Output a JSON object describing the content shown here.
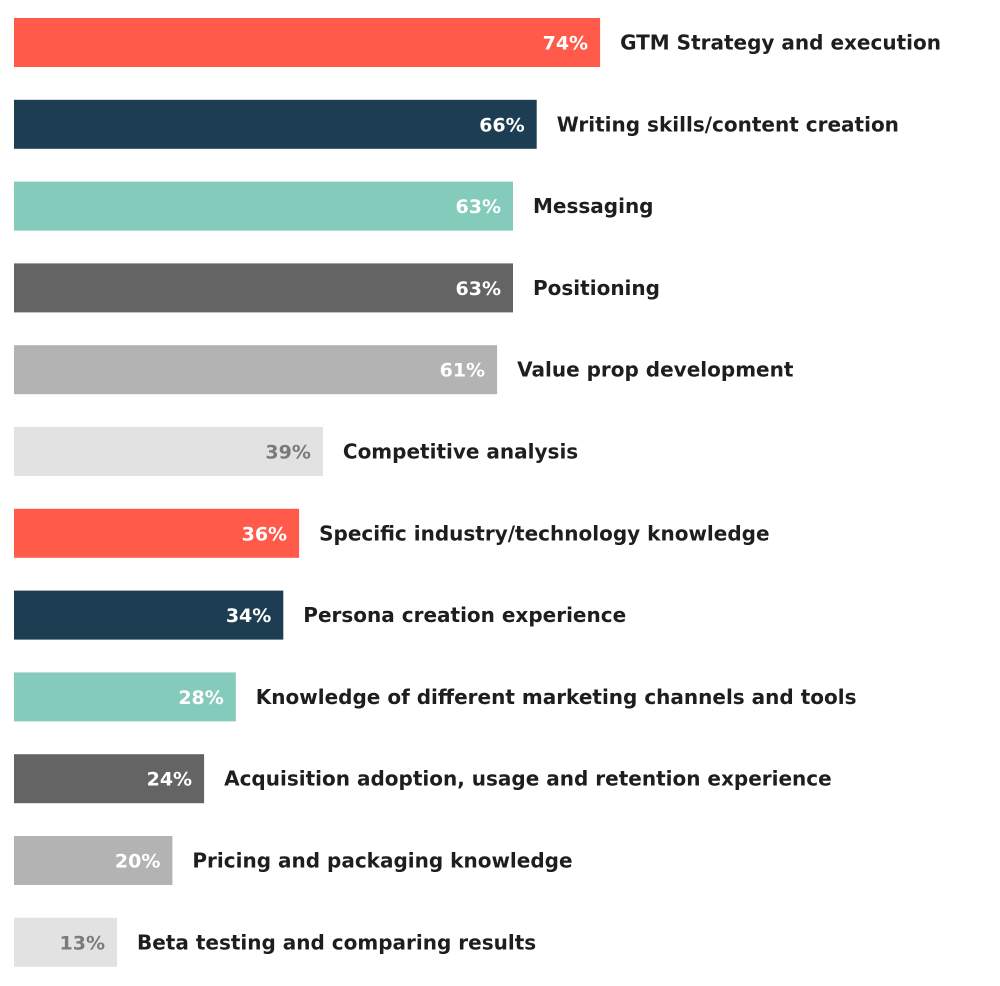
{
  "chart_data": {
    "type": "bar",
    "orientation": "horizontal",
    "title": "",
    "xlabel": "",
    "ylabel": "",
    "xlim": [
      0,
      100
    ],
    "grid": false,
    "legend": "none",
    "value_suffix": "%",
    "categories": [
      "GTM Strategy and execution",
      "Writing skills/content creation",
      "Messaging",
      "Positioning",
      "Value prop development",
      "Competitive analysis",
      "Specific industry/technology knowledge",
      "Persona creation experience",
      "Knowledge of different marketing channels and tools",
      "Acquisition adoption, usage and retention experience",
      "Pricing and packaging knowledge",
      "Beta testing and comparing results"
    ],
    "values": [
      74,
      66,
      63,
      63,
      61,
      39,
      36,
      34,
      28,
      24,
      20,
      13
    ],
    "bar_colors": [
      "#ff5a4a",
      "#1c3d52",
      "#84cbbb",
      "#646464",
      "#b3b3b3",
      "#e2e2e2",
      "#ff5a4a",
      "#1c3d52",
      "#84cbbb",
      "#646464",
      "#b3b3b3",
      "#e2e2e2"
    ],
    "value_label_colors": [
      "#ffffff",
      "#ffffff",
      "#ffffff",
      "#ffffff",
      "#ffffff",
      "#7a7a7a",
      "#ffffff",
      "#ffffff",
      "#ffffff",
      "#ffffff",
      "#ffffff",
      "#7a7a7a"
    ],
    "value_labels": [
      "74%",
      "66%",
      "63%",
      "63%",
      "61%",
      "39%",
      "36%",
      "34%",
      "28%",
      "24%",
      "20%",
      "13%"
    ]
  }
}
